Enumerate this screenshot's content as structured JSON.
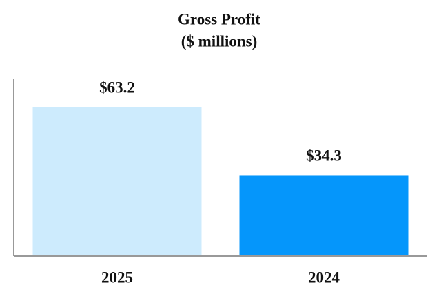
{
  "chart_data": {
    "type": "bar",
    "title": "Gross Profit",
    "subtitle": "($ millions)",
    "categories": [
      "2025",
      "2024"
    ],
    "values": [
      63.2,
      34.3
    ],
    "value_labels": [
      "$63.2",
      "$34.3"
    ],
    "colors": [
      "#cdebfd",
      "#0596fb"
    ],
    "ylim": [
      0,
      75
    ]
  }
}
